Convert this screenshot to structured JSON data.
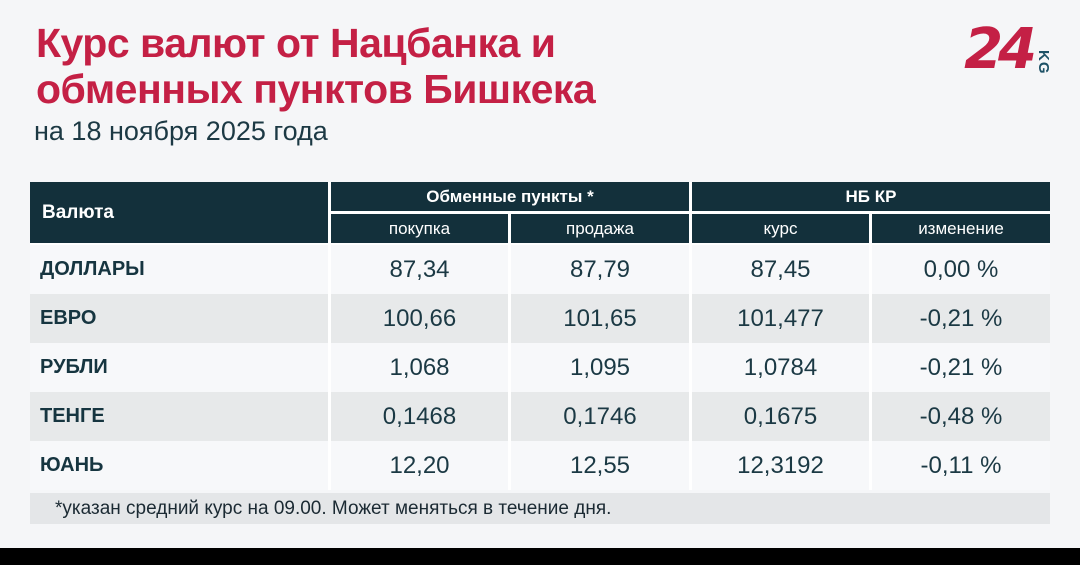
{
  "header": {
    "title_line1": "Курс валют от Нацбанка и",
    "title_line2": "обменных пунктов Бишкека",
    "subtitle": "на 18 ноября 2025 года"
  },
  "logo": {
    "number": "24",
    "suffix": "KG"
  },
  "colors": {
    "accent_red": "#c42045",
    "dark_teal": "#13303b",
    "logo_kg_teal": "#1d5166",
    "row_light": "#f7f8fa",
    "row_gray": "#e7e9ea",
    "footnote_band": "#e4e6e8",
    "background": "#f5f6f8",
    "bottom_bar": "#000000"
  },
  "table": {
    "col_currency": "Валюта",
    "group_exchange": "Обменные пункты *",
    "group_nbkr": "НБ КР",
    "sub_buy": "покупка",
    "sub_sell": "продажа",
    "sub_rate": "курс",
    "sub_change": "изменение",
    "rows": [
      {
        "currency": "ДОЛЛАРЫ",
        "buy": "87,34",
        "sell": "87,79",
        "rate": "87,45",
        "change": "0,00 %"
      },
      {
        "currency": "ЕВРО",
        "buy": "100,66",
        "sell": "101,65",
        "rate": "101,477",
        "change": "-0,21 %"
      },
      {
        "currency": "РУБЛИ",
        "buy": "1,068",
        "sell": "1,095",
        "rate": "1,0784",
        "change": "-0,21 %"
      },
      {
        "currency": "ТЕНГЕ",
        "buy": "0,1468",
        "sell": "0,1746",
        "rate": "0,1675",
        "change": "-0,48 %"
      },
      {
        "currency": "ЮАНЬ",
        "buy": "12,20",
        "sell": "12,55",
        "rate": "12,3192",
        "change": "-0,11 %"
      }
    ]
  },
  "footnote": "*указан средний курс на 09.00. Может меняться в течение дня.",
  "chart_data": {
    "type": "table",
    "title": "Курс валют от Нацбанка и обменных пунктов Бишкека",
    "subtitle": "на 18 ноября 2025 года",
    "columns": [
      "Валюта",
      "Обменные пункты: покупка",
      "Обменные пункты: продажа",
      "НБ КР: курс",
      "НБ КР: изменение"
    ],
    "rows": [
      [
        "ДОЛЛАРЫ",
        87.34,
        87.79,
        87.45,
        "0,00 %"
      ],
      [
        "ЕВРО",
        100.66,
        101.65,
        101.477,
        "-0,21 %"
      ],
      [
        "РУБЛИ",
        1.068,
        1.095,
        1.0784,
        "-0,21 %"
      ],
      [
        "ТЕНГЕ",
        0.1468,
        0.1746,
        0.1675,
        "-0,48 %"
      ],
      [
        "ЮАНЬ",
        12.2,
        12.55,
        12.3192,
        "-0,11 %"
      ]
    ],
    "footnote": "*указан средний курс на 09.00. Может меняться в течение дня."
  }
}
